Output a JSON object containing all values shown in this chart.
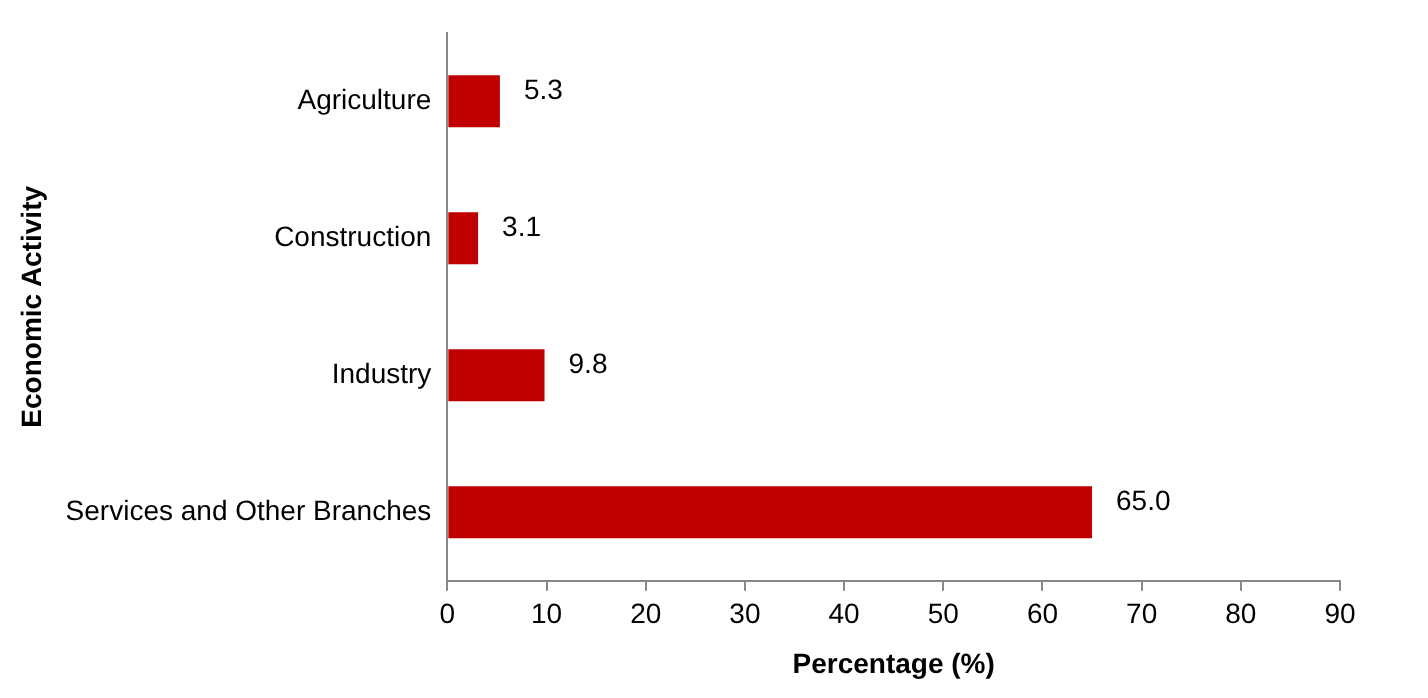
{
  "chart_data": {
    "type": "bar",
    "orientation": "horizontal",
    "xlabel": "Percentage (%)",
    "ylabel": "Economic Activity",
    "categories": [
      "Agriculture",
      "Construction",
      "Industry",
      "Services and Other Branches"
    ],
    "values": [
      5.3,
      3.1,
      9.8,
      65.0
    ],
    "color": "#c00000",
    "value_labels": [
      "5.3",
      "3.1",
      "9.8",
      "65.0"
    ],
    "xlim": [
      0,
      90
    ],
    "xticks": [
      0,
      10,
      20,
      30,
      40,
      50,
      60,
      70,
      80,
      90
    ],
    "grid": false,
    "legend": false
  }
}
